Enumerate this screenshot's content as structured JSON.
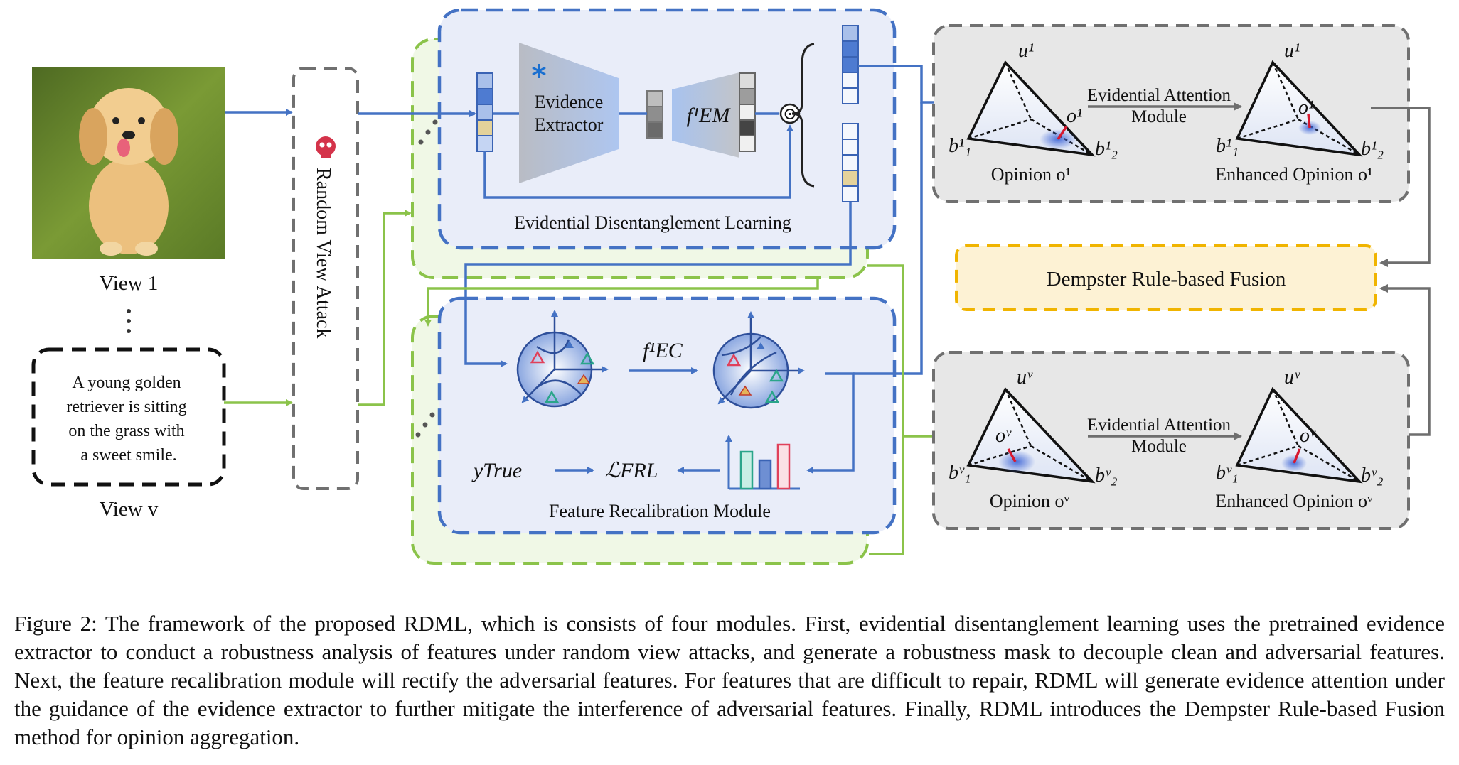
{
  "input": {
    "view1_label": "View 1",
    "viewv_label": "View v",
    "text_view_lines": [
      "A young golden",
      "retriever is sitting",
      "on the grass with",
      "a sweet smile."
    ]
  },
  "attack": {
    "label": "Random View Attack"
  },
  "edl": {
    "title": "Evidential Disentanglement Learning",
    "extractor_line1": "Evidence",
    "extractor_line2": "Extractor",
    "fem_label": "f¹EM",
    "odot": "⊙"
  },
  "frm": {
    "title": "Feature Recalibration Module",
    "fec_label": "f¹EC",
    "ytrue_label": "yTrue",
    "loss_label": "ℒFRL"
  },
  "opinion_top": {
    "u_label": "u¹",
    "b1_label": "b¹₁",
    "b2_label": "b¹₂",
    "o_label": "o¹",
    "attention_line1": "Evidential Attention",
    "attention_line2": "Module",
    "u_enh_label": "u¹",
    "b1_enh_label": "b¹₁",
    "b2_enh_label": "b¹₂",
    "o_enh_label": "o¹",
    "opinion_caption": "Opinion o¹",
    "enhanced_caption": "Enhanced Opinion o¹"
  },
  "opinion_bottom": {
    "u_label": "uᵛ",
    "b1_label": "bᵛ₁",
    "b2_label": "bᵛ₂",
    "o_label": "oᵛ",
    "attention_line1": "Evidential Attention",
    "attention_line2": "Module",
    "u_enh_label": "uᵛ",
    "b1_enh_label": "bᵛ₁",
    "b2_enh_label": "bᵛ₂",
    "o_enh_label": "oᵛ",
    "opinion_caption": "Opinion oᵛ",
    "enhanced_caption": "Enhanced Opinion oᵛ"
  },
  "fusion": {
    "label": "Dempster Rule-based Fusion"
  },
  "caption": "Figure 2: The framework of the proposed RDML, which is consists of four modules. First, evidential disentanglement learning uses the pretrained evidence extractor to conduct a robustness analysis of features under random view attacks, and generate a robustness mask to decouple clean and adversarial features. Next, the feature recalibration module will rectify the adversarial features. For features that are difficult to repair, RDML will generate evidence attention under the guidance of the evidence extractor to further mitigate the interference of adversarial features. Finally, RDML introduces the Dempster Rule-based Fusion method for opinion aggregation.",
  "colors": {
    "blue_flow": "#4472C4",
    "green_flow": "#8BC34A",
    "fusion_border": "#F0B400",
    "gray_border": "#707070"
  }
}
